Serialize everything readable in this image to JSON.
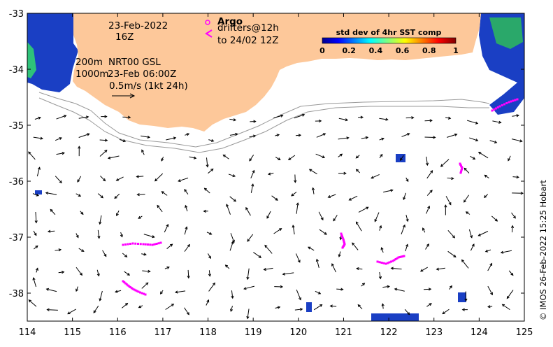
{
  "map": {
    "date_line1": "23-Feb-2022",
    "date_line2": "16Z",
    "isobath_label1": "200m",
    "isobath_label2": "1000m",
    "product_line1": "NRT00 GSL",
    "product_line2": "23-Feb 06:00Z",
    "scale_label": "0.5m/s (1kt 24h)",
    "argo_label": "Argo",
    "drifters_line1": "drifters@12h",
    "drifters_line2": "to 24/02 12Z",
    "credit": "© IMOS 26-Feb-2022 15:25 Hobart",
    "colorbar": {
      "title": "std dev of 4hr SST comp",
      "ticks": [
        "0",
        "0.2",
        "0.4",
        "0.6",
        "0.8",
        "1"
      ]
    },
    "colors": {
      "land": "#fdc89a",
      "drifter": "#ff00ff",
      "arrow": "#000000",
      "isobath": "#999999"
    }
  },
  "chart_data": {
    "type": "map",
    "xlim": [
      114,
      125
    ],
    "ylim": [
      -38.5,
      -33
    ],
    "x_ticks": [
      "114",
      "115",
      "116",
      "117",
      "118",
      "119",
      "120",
      "121",
      "122",
      "123",
      "124",
      "125"
    ],
    "y_ticks": [
      "-33",
      "-34",
      "-35",
      "-36",
      "-37",
      "-38"
    ]
  }
}
